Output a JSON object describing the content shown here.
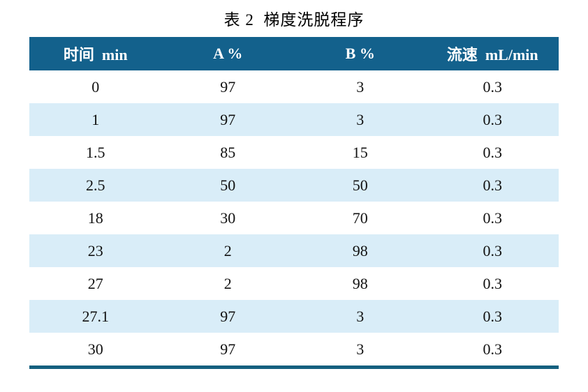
{
  "title": "表 2  梯度洗脱程序",
  "table": {
    "headers": [
      "时间  min",
      "A %",
      "B %",
      "流速  mL/min"
    ],
    "rows": [
      [
        "0",
        "97",
        "3",
        "0.3"
      ],
      [
        "1",
        "97",
        "3",
        "0.3"
      ],
      [
        "1.5",
        "85",
        "15",
        "0.3"
      ],
      [
        "2.5",
        "50",
        "50",
        "0.3"
      ],
      [
        "18",
        "30",
        "70",
        "0.3"
      ],
      [
        "23",
        "2",
        "98",
        "0.3"
      ],
      [
        "27",
        "2",
        "98",
        "0.3"
      ],
      [
        "27.1",
        "97",
        "3",
        "0.3"
      ],
      [
        "30",
        "97",
        "3",
        "0.3"
      ]
    ]
  },
  "colors": {
    "header_bg": "#13618C",
    "header_text": "#FFFFFF",
    "row_alt_bg": "#D9EDF8",
    "bottom_rule": "#14607F",
    "body_text": "#111111"
  }
}
